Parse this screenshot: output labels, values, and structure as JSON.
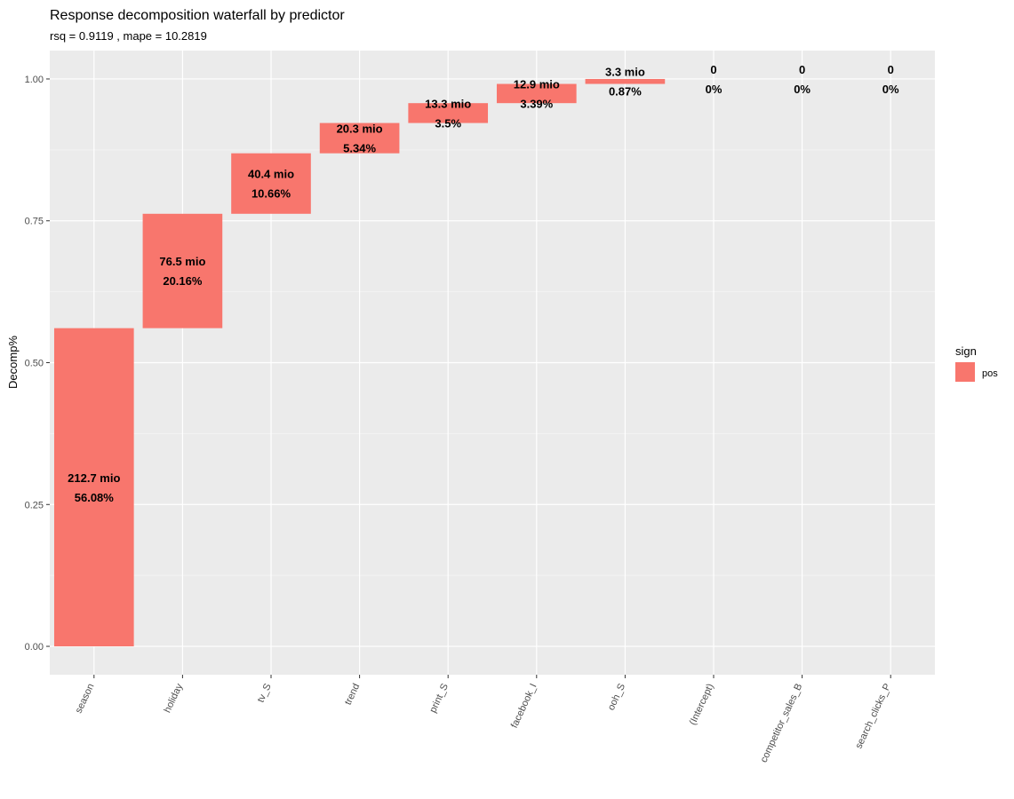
{
  "chart_data": {
    "type": "bar",
    "subtype": "waterfall",
    "title": "Response decomposition waterfall by predictor",
    "subtitle": "rsq = 0.9119 , mape = 10.2819",
    "xlabel": "",
    "ylabel": "Decomp%",
    "ylim": [
      -0.05,
      1.05
    ],
    "yticks": [
      0.0,
      0.25,
      0.5,
      0.75,
      1.0
    ],
    "ytick_labels": [
      "0.00",
      "0.25",
      "0.50",
      "0.75",
      "1.00"
    ],
    "grid": true,
    "legend": {
      "title": "sign",
      "position": "right",
      "entries": [
        {
          "label": "pos",
          "color": "#F8766D"
        }
      ]
    },
    "colors": {
      "panel": "#EBEBEB",
      "grid_major": "#FFFFFF",
      "grid_minor": "#F5F5F5",
      "bar": "#F8766D",
      "axis_text": "#4D4D4D"
    },
    "categories": [
      "season",
      "holiday",
      "tv_S",
      "trend",
      "print_S",
      "facebook_I",
      "ooh_S",
      "(Intercept)",
      "competitor_sales_B",
      "search_clicks_P"
    ],
    "values": [
      0.5608,
      0.2016,
      0.1066,
      0.0534,
      0.035,
      0.0339,
      0.0087,
      0,
      0,
      0
    ],
    "start": [
      0.0,
      0.5608,
      0.7624,
      0.869,
      0.9224,
      0.9574,
      0.9913,
      1.0,
      1.0,
      1.0
    ],
    "end": [
      0.5608,
      0.7624,
      0.869,
      0.9224,
      0.9574,
      0.9913,
      1.0,
      1.0,
      1.0,
      1.0
    ],
    "sign": [
      "pos",
      "pos",
      "pos",
      "pos",
      "pos",
      "pos",
      "pos",
      "pos",
      "pos",
      "pos"
    ],
    "label_amount": [
      "212.7 mio",
      "76.5 mio",
      "40.4 mio",
      "20.3 mio",
      "13.3 mio",
      "12.9 mio",
      "3.3 mio",
      "0",
      "0",
      "0"
    ],
    "label_percent": [
      "56.08%",
      "20.16%",
      "10.66%",
      "5.34%",
      "3.5%",
      "3.39%",
      "0.87%",
      "0%",
      "0%",
      "0%"
    ]
  }
}
